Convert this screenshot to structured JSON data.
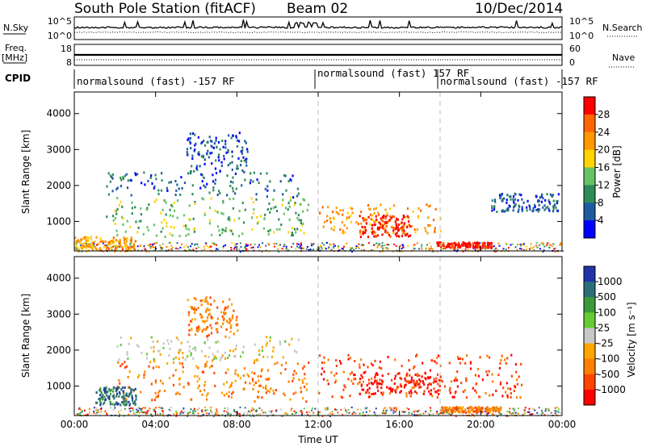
{
  "header": {
    "station": "South Pole Station (fitACF)",
    "beam": "Beam 02",
    "date": "10/Dec/2014"
  },
  "labels": {
    "n_sky": "N.Sky",
    "n_search": "N.Search",
    "freq": "Freq.",
    "freq_unit": "[MHz]",
    "nave": "Nave",
    "cpid": "CPID"
  },
  "noise_panel": {
    "left_ticks": [
      "10^5",
      "10^0"
    ],
    "right_ticks": [
      "10^5",
      "10^0"
    ]
  },
  "freq_panel": {
    "left_ticks": [
      "18",
      "8"
    ],
    "right_ticks": [
      "60",
      "0"
    ]
  },
  "cpid_segments": [
    "normalsound (fast) -157 RF",
    "normalsound (fast) 157 RF",
    "normalsound (fast) -157 RF"
  ],
  "colors": {
    "power_scale": [
      "#0000ff",
      "#1e5aa0",
      "#2e8b57",
      "#66c266",
      "#ffd400",
      "#ff9900",
      "#ff6600",
      "#ff0000"
    ],
    "velocity_scale": [
      "#2233aa",
      "#2e6e78",
      "#3a9a3a",
      "#66cc33",
      "#c8c8c8",
      "#ffa500",
      "#ff7f00",
      "#ff4500",
      "#ff0000"
    ]
  },
  "chart_data": [
    {
      "type": "heatmap",
      "name": "power",
      "xlabel": "",
      "ylabel": "Slant Range [km]",
      "xlim": [
        "00:00",
        "24:00"
      ],
      "ylim": [
        180,
        4600
      ],
      "y_ticks": [
        "1000",
        "2000",
        "3000",
        "4000"
      ],
      "colorbar_label": "Power [dB]",
      "colorbar_ticks": [
        "4",
        "8",
        "12",
        "16",
        "20",
        "24",
        "28"
      ],
      "regions": [
        {
          "t": [
            1.5,
            11.0
          ],
          "r": [
            1700,
            2400
          ],
          "level": 1
        },
        {
          "t": [
            5.5,
            8.5
          ],
          "r": [
            2400,
            3500
          ],
          "level": 1
        },
        {
          "t": [
            1.5,
            11.5
          ],
          "r": [
            600,
            1700
          ],
          "level": 3
        },
        {
          "t": [
            0.0,
            3.0
          ],
          "r": [
            200,
            600
          ],
          "level": 5
        },
        {
          "t": [
            12.0,
            18.0
          ],
          "r": [
            700,
            1500
          ],
          "level": 5
        },
        {
          "t": [
            14.0,
            16.5
          ],
          "r": [
            600,
            1200
          ],
          "level": 7
        },
        {
          "t": [
            17.8,
            20.5
          ],
          "r": [
            300,
            450
          ],
          "level": 7
        },
        {
          "t": [
            20.5,
            23.8
          ],
          "r": [
            1300,
            1800
          ],
          "level": 1
        }
      ]
    },
    {
      "type": "heatmap",
      "name": "velocity",
      "xlabel": "Time UT",
      "ylabel": "Slant Range [km]",
      "xlim": [
        "00:00",
        "24:00"
      ],
      "ylim": [
        180,
        4600
      ],
      "x_ticks": [
        "00:00",
        "04:00",
        "08:00",
        "12:00",
        "16:00",
        "20:00",
        "00:00"
      ],
      "y_ticks": [
        "1000",
        "2000",
        "3000",
        "4000"
      ],
      "colorbar_label": "Velocity [m s⁻¹]",
      "colorbar_ticks": [
        "1000",
        "500",
        "100",
        "25",
        "-25",
        "-100",
        "-500",
        "-1000"
      ],
      "regions": [
        {
          "t": [
            2.0,
            11.0
          ],
          "r": [
            1700,
            2400
          ],
          "level": 4
        },
        {
          "t": [
            2.0,
            11.5
          ],
          "r": [
            600,
            1700
          ],
          "level": 6
        },
        {
          "t": [
            1.0,
            3.0
          ],
          "r": [
            500,
            1000
          ],
          "level": 1
        },
        {
          "t": [
            12.0,
            22.0
          ],
          "r": [
            700,
            1900
          ],
          "level": 7
        },
        {
          "t": [
            14.0,
            18.0
          ],
          "r": [
            800,
            1400
          ],
          "level": 8
        },
        {
          "t": [
            18.0,
            21.0
          ],
          "r": [
            300,
            450
          ],
          "level": 6
        },
        {
          "t": [
            5.5,
            8.0
          ],
          "r": [
            2400,
            3500
          ],
          "level": 6
        }
      ]
    }
  ]
}
